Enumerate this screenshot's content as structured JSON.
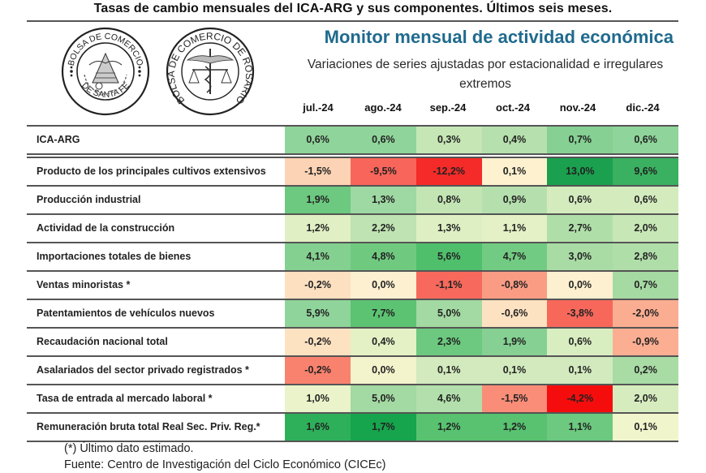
{
  "page_title": "Tasas de cambio mensuales del ICA-ARG y sus componentes. Últimos seis meses.",
  "logos": [
    {
      "name": "bolsa-de-comercio-de-santa-fe-logo",
      "text_top": "BOLSA DE COMERCIO",
      "text_bottom": "DE SANTA FE"
    },
    {
      "name": "bolsa-de-comercio-de-rosario-logo",
      "text": "BOLSA DE COMERCIO DE ROSARIO"
    }
  ],
  "header": {
    "title": "Monitor mensual de actividad económica",
    "subtitle_line1": "Variaciones de series ajustadas por estacionalidad e irregulares",
    "subtitle_line2": "extremos"
  },
  "months": [
    "jul.-24",
    "ago.-24",
    "sep.-24",
    "oct.-24",
    "nov.-24",
    "dic.-24"
  ],
  "rows": [
    {
      "label": "ICA-ARG",
      "values": [
        "0,6%",
        "0,6%",
        "0,3%",
        "0,4%",
        "0,7%",
        "0,6%"
      ],
      "colors": [
        "#8fd49a",
        "#8fd49a",
        "#c6e6b5",
        "#b6e0ad",
        "#85d092",
        "#8fd49a"
      ]
    },
    {
      "label": "Producto de los principales cultivos extensivos",
      "values": [
        "-1,5%",
        "-9,5%",
        "-12,2%",
        "0,1%",
        "13,0%",
        "9,6%"
      ],
      "colors": [
        "#fcd3b4",
        "#f8655a",
        "#f42b28",
        "#fdf1cf",
        "#1aa04e",
        "#3ab160"
      ]
    },
    {
      "label": "Producción industrial",
      "values": [
        "1,9%",
        "1,3%",
        "0,8%",
        "0,9%",
        "0,6%",
        "0,6%"
      ],
      "colors": [
        "#6cc97f",
        "#9ed8a2",
        "#c3e5b4",
        "#b5e0ad",
        "#d4ebbe",
        "#d4ebbe"
      ]
    },
    {
      "label": "Actividad de la construcción",
      "values": [
        "1,2%",
        "2,2%",
        "1,3%",
        "1,1%",
        "2,7%",
        "2,0%"
      ],
      "colors": [
        "#e1efc4",
        "#bfe3b2",
        "#def0c3",
        "#e4f1c6",
        "#b0dea9",
        "#c8e7b7"
      ]
    },
    {
      "label": "Importaciones totales de bienes",
      "values": [
        "4,1%",
        "4,8%",
        "5,6%",
        "4,7%",
        "3,0%",
        "2,8%"
      ],
      "colors": [
        "#84d090",
        "#6fca80",
        "#4fbf6c",
        "#72cb82",
        "#a9dba5",
        "#b0dea9"
      ]
    },
    {
      "label": "Ventas minoristas *",
      "values": [
        "-0,2%",
        "0,0%",
        "-1,1%",
        "-0,8%",
        "0,0%",
        "0,7%"
      ],
      "colors": [
        "#fde0c0",
        "#fdf0d0",
        "#f6695c",
        "#fa9c84",
        "#fdf0d0",
        "#a6daa3"
      ]
    },
    {
      "label": "Patentamientos de vehículos nuevos",
      "values": [
        "5,9%",
        "7,7%",
        "5,0%",
        "-0,6%",
        "-3,8%",
        "-2,0%"
      ],
      "colors": [
        "#8fd49a",
        "#5cc373",
        "#a3d9a2",
        "#fde2c2",
        "#f7685b",
        "#fbad91"
      ]
    },
    {
      "label": "Recaudación nacional total",
      "values": [
        "-0,2%",
        "0,4%",
        "2,3%",
        "1,9%",
        "0,6%",
        "-0,9%"
      ],
      "colors": [
        "#fde2c2",
        "#e3f1c5",
        "#6cc97f",
        "#85d092",
        "#d8edc0",
        "#fbae92"
      ]
    },
    {
      "label": "Asalariados del sector privado registrados *",
      "values": [
        "-0,2%",
        "0,0%",
        "0,1%",
        "0,1%",
        "0,1%",
        "0,2%"
      ],
      "colors": [
        "#f9826e",
        "#f3f3cc",
        "#d2eabd",
        "#d2eabd",
        "#d2eabd",
        "#a9dba5"
      ]
    },
    {
      "label": "Tasa de entrada al mercado laboral *",
      "values": [
        "1,0%",
        "5,0%",
        "4,6%",
        "-1,5%",
        "-4,2%",
        "2,0%"
      ],
      "colors": [
        "#eaf3c9",
        "#a3d9a2",
        "#b2dfab",
        "#fa8d78",
        "#f50d0d",
        "#d6ecbf"
      ]
    },
    {
      "label": "Remuneración bruta total Real Sec. Priv. Reg.*",
      "values": [
        "1,6%",
        "1,7%",
        "1,2%",
        "1,2%",
        "1,1%",
        "0,1%"
      ],
      "colors": [
        "#2eb05a",
        "#16a44c",
        "#58c270",
        "#58c270",
        "#6cc97f",
        "#f1f5cc"
      ]
    }
  ],
  "footnote": {
    "estimated": "(*) Último dato estimado.",
    "source": "Fuente: Centro de Investigación del Ciclo Económico (CICEc)"
  }
}
